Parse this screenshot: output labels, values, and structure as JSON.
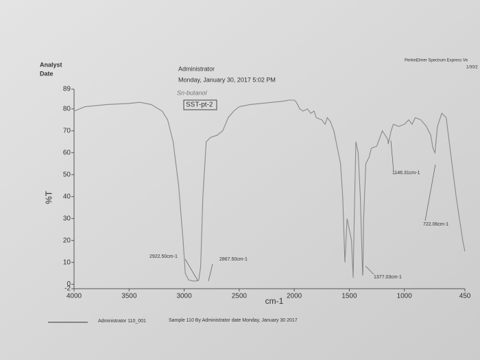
{
  "header": {
    "analyst_label": "Analyst",
    "date_label": "Date",
    "analyst": "Administrator",
    "date": "Monday, January 30, 2017 5:02 PM",
    "software": "PerkinElmer Spectrum Express Ve",
    "software_date": "1/30/2",
    "handwritten": "Sn-butanol"
  },
  "footer": {
    "file": "Administrator 110_001",
    "description": "Sample 110 By Administrator date Monday, January 30 2017"
  },
  "chart_data": {
    "type": "line",
    "title": "SST-pt-2",
    "x_label": "cm-1",
    "y_label": "%T",
    "color": "#888888",
    "x": [
      4000,
      3900,
      3700,
      3500,
      3400,
      3300,
      3200,
      3150,
      3100,
      3050,
      3010,
      2990,
      2960,
      2922,
      2890,
      2867,
      2850,
      2830,
      2800,
      2760,
      2700,
      2650,
      2600,
      2550,
      2500,
      2400,
      2300,
      2200,
      2100,
      2050,
      2000,
      1980,
      1950,
      1920,
      1880,
      1850,
      1820,
      1800,
      1750,
      1720,
      1700,
      1670,
      1640,
      1600,
      1580,
      1560,
      1540,
      1520,
      1480,
      1465,
      1455,
      1440,
      1420,
      1400,
      1380,
      1377,
      1370,
      1350,
      1320,
      1300,
      1250,
      1200,
      1150,
      1146,
      1120,
      1100,
      1050,
      1000,
      960,
      930,
      900,
      850,
      800,
      760,
      740,
      722,
      700,
      660,
      620,
      580,
      530,
      500,
      470,
      450
    ],
    "values": [
      79,
      81,
      82,
      82.5,
      83,
      82,
      79,
      75,
      65,
      45,
      20,
      5,
      2,
      1.5,
      1.5,
      2,
      8,
      40,
      65,
      67,
      68,
      70,
      76,
      79,
      81,
      82,
      82.5,
      83,
      83.5,
      84,
      84,
      83,
      80,
      79,
      80,
      78,
      79,
      76,
      75,
      73,
      76,
      74,
      70,
      60,
      55,
      40,
      10,
      30,
      20,
      3,
      30,
      65,
      60,
      40,
      5,
      4,
      30,
      55,
      58,
      62,
      63,
      70,
      66,
      64,
      70,
      73,
      72,
      73,
      75,
      73,
      76,
      75,
      72,
      68,
      62,
      60,
      72,
      78,
      76,
      60,
      40,
      30,
      20,
      15
    ],
    "annotations": [
      "2922.50cm-1",
      "2867.50cm-1",
      "1377.03cm-1",
      "1146.31cm-1",
      "722.06cm-1"
    ],
    "xlim": [
      4000,
      450
    ],
    "xticks": [
      4000,
      3500,
      3000,
      2500,
      2000,
      1500,
      1000,
      450
    ],
    "ylim": [
      -2,
      89
    ],
    "yticks": [
      89,
      80,
      70,
      60,
      50,
      40,
      30,
      20,
      10,
      0,
      -2
    ]
  }
}
